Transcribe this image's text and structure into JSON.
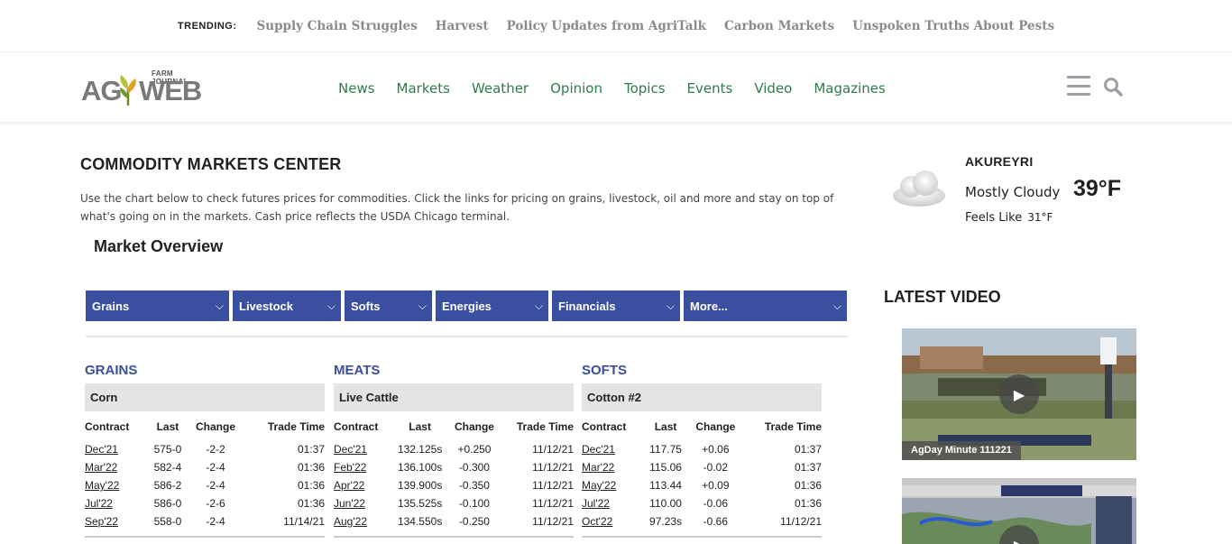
{
  "trending": {
    "label": "TRENDING:",
    "links": [
      "Supply Chain Struggles",
      "Harvest",
      "Policy Updates from AgriTalk",
      "Carbon Markets",
      "Unspoken Truths About Pests"
    ]
  },
  "header": {
    "logo": {
      "ag": "AG",
      "web": "WEB",
      "farm_journal": "FARM JOURNAL"
    },
    "nav": [
      "News",
      "Markets",
      "Weather",
      "Opinion",
      "Topics",
      "Events",
      "Video",
      "Magazines"
    ],
    "icons": {
      "menu": "hamburger-menu-icon",
      "search": "search-icon"
    },
    "nav_color": "#2f7d4a"
  },
  "main": {
    "title": "COMMODITY MARKETS CENTER",
    "intro": "Use the chart below to check futures prices for commodities. Click the links for pricing on grains, livestock, oil and more and stay on top of what's going on in the markets. Cash price reflects the USDA Chicago terminal.",
    "overview_title": "Market Overview",
    "tabs": [
      "Grains",
      "Livestock",
      "Softs",
      "Energies",
      "Financials",
      "More..."
    ],
    "tab_color": "#3b4fa0",
    "columns": [
      "Contract",
      "Last",
      "Change",
      "Trade Time"
    ],
    "panels": [
      {
        "title": "GRAINS",
        "commodity": "Corn",
        "rows": [
          {
            "contract": "Dec'21",
            "last": "575-0",
            "change": "-2-2",
            "time": "01:37",
            "dir": "neutral"
          },
          {
            "contract": "Mar'22",
            "last": "582-4",
            "change": "-2-4",
            "time": "01:36",
            "dir": "neutral"
          },
          {
            "contract": "May'22",
            "last": "586-2",
            "change": "-2-4",
            "time": "01:36",
            "dir": "neutral"
          },
          {
            "contract": "Jul'22",
            "last": "586-0",
            "change": "-2-6",
            "time": "01:36",
            "dir": "neutral"
          },
          {
            "contract": "Sep'22",
            "last": "558-0",
            "change": "-2-4",
            "time": "11/14/21",
            "dir": "neutral"
          }
        ]
      },
      {
        "title": "MEATS",
        "commodity": "Live Cattle",
        "rows": [
          {
            "contract": "Dec'21",
            "last": "132.125s",
            "change": "+0.250",
            "time": "11/12/21",
            "dir": "pos"
          },
          {
            "contract": "Feb'22",
            "last": "136.100s",
            "change": "-0.300",
            "time": "11/12/21",
            "dir": "neg"
          },
          {
            "contract": "Apr'22",
            "last": "139.900s",
            "change": "-0.350",
            "time": "11/12/21",
            "dir": "neg"
          },
          {
            "contract": "Jun'22",
            "last": "135.525s",
            "change": "-0.100",
            "time": "11/12/21",
            "dir": "neg"
          },
          {
            "contract": "Aug'22",
            "last": "134.550s",
            "change": "-0.250",
            "time": "11/12/21",
            "dir": "neg"
          }
        ]
      },
      {
        "title": "SOFTS",
        "commodity": "Cotton #2",
        "rows": [
          {
            "contract": "Dec'21",
            "last": "117.75",
            "change": "+0.06",
            "time": "01:37",
            "dir": "pos"
          },
          {
            "contract": "Mar'22",
            "last": "115.06",
            "change": "-0.02",
            "time": "01:37",
            "dir": "neg"
          },
          {
            "contract": "May'22",
            "last": "113.44",
            "change": "+0.09",
            "time": "01:36",
            "dir": "pos"
          },
          {
            "contract": "Jul'22",
            "last": "110.00",
            "change": "-0.06",
            "time": "01:36",
            "dir": "neg"
          },
          {
            "contract": "Oct'22",
            "last": "97.23s",
            "change": "-0.66",
            "time": "11/12/21",
            "dir": "neg"
          }
        ]
      }
    ]
  },
  "sidebar": {
    "weather": {
      "city": "AKUREYRI",
      "condition": "Mostly Cloudy",
      "temp": "39°F",
      "feels_label": "Feels Like",
      "feels_value": "31°F",
      "icon": "cloud-icon"
    },
    "latest_video_title": "LATEST VIDEO",
    "videos": [
      {
        "caption": "AgDay Minute 111221",
        "icon": "play-icon"
      },
      {
        "caption": "",
        "icon": "play-icon"
      }
    ]
  }
}
